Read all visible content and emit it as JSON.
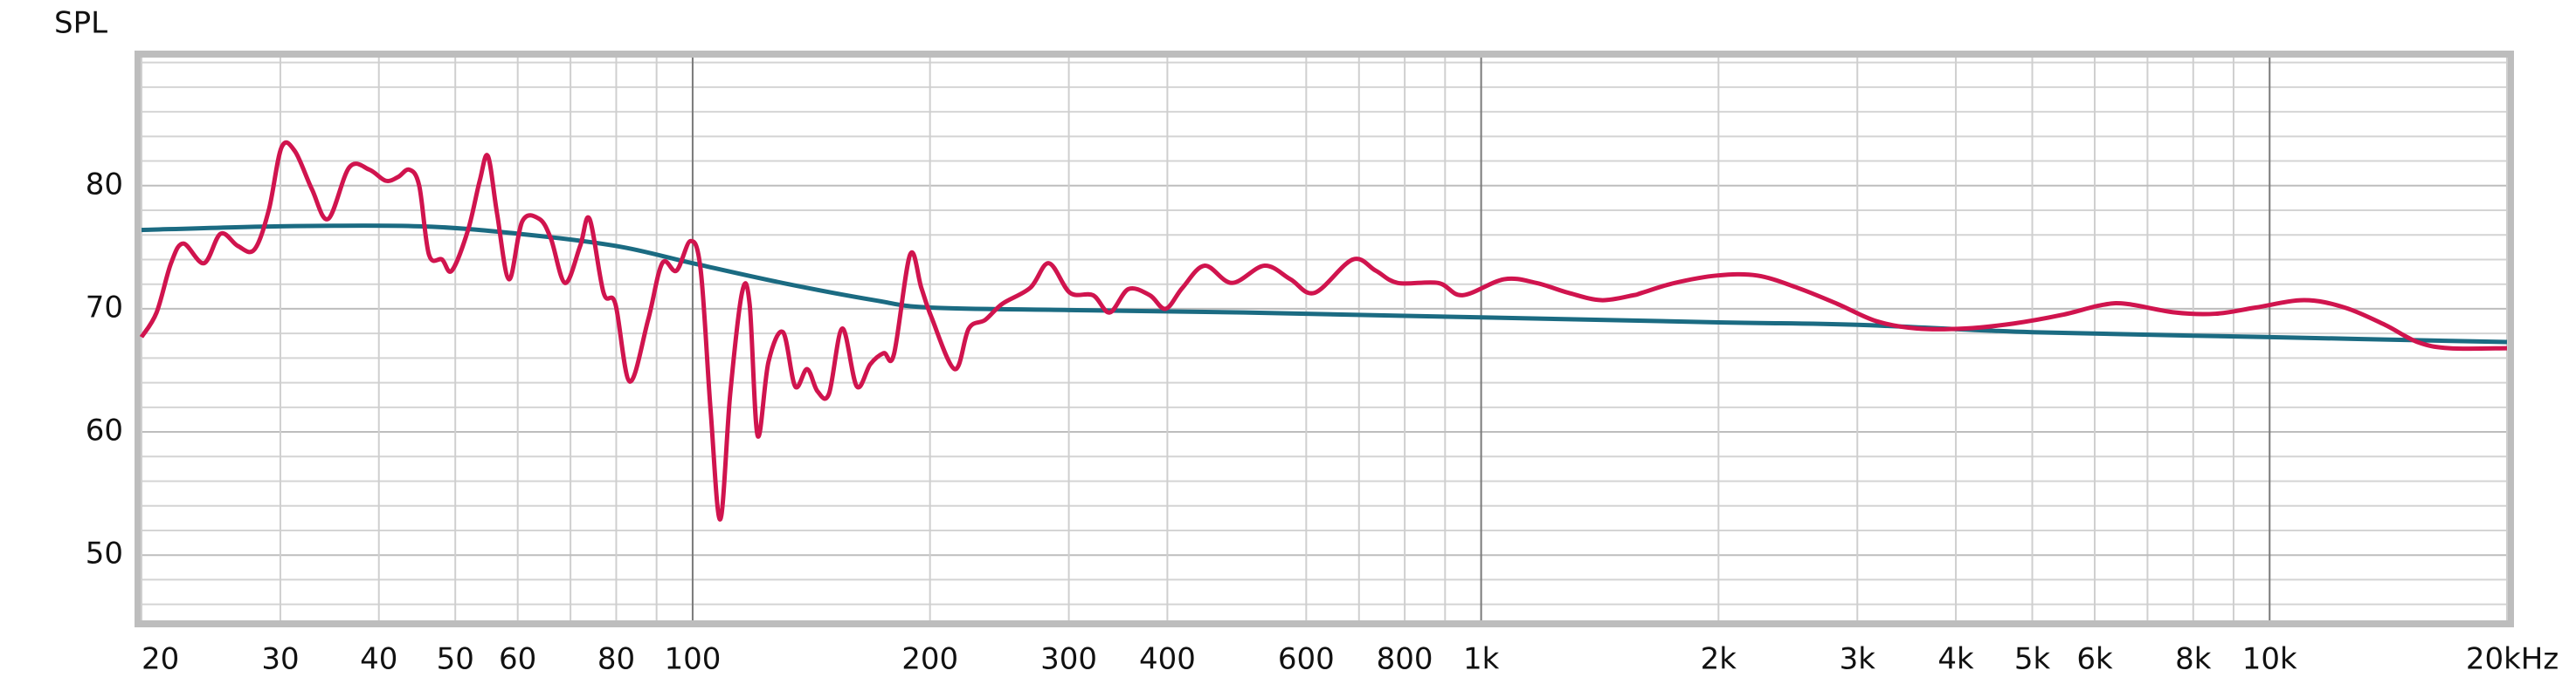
{
  "chart_data": {
    "type": "line",
    "y_label": "SPL",
    "log_x": true,
    "grid": true,
    "xlim": [
      20,
      20000
    ],
    "ylim": [
      44.7,
      90.4
    ],
    "xticks": [
      20,
      30,
      40,
      50,
      60,
      80,
      100,
      200,
      300,
      400,
      600,
      800,
      {
        "value": 1000,
        "label": "1k"
      },
      {
        "value": 2000,
        "label": "2k"
      },
      {
        "value": 3000,
        "label": "3k"
      },
      {
        "value": 4000,
        "label": "4k"
      },
      {
        "value": 5000,
        "label": "5k"
      },
      {
        "value": 6000,
        "label": "6k"
      },
      {
        "value": 8000,
        "label": "8k"
      },
      {
        "value": 10000,
        "label": "10k"
      },
      {
        "value": 20000,
        "label": "20kHz"
      }
    ],
    "x_minor_ticks": [
      70,
      90,
      700,
      900,
      7000,
      9000
    ],
    "yticks": [
      50,
      60,
      70,
      80
    ],
    "y_minor_ticks": [
      46,
      48,
      52,
      54,
      56,
      58,
      62,
      64,
      66,
      68,
      72,
      74,
      76,
      78,
      82,
      84,
      86,
      88,
      90
    ],
    "series": [
      {
        "color": "#d0144e",
        "x": [
          20,
          20.9,
          21.8,
          22.6,
          24.0,
          25.2,
          26.5,
          27.8,
          29.0,
          30.1,
          31.3,
          32.9,
          34.5,
          36.7,
          38.9,
          40.8,
          42.3,
          43.7,
          45,
          46.3,
          48.1,
          49.5,
          51.9,
          53.7,
          55,
          56.5,
          58.5,
          60.8,
          63.9,
          66.1,
          68.9,
          72,
          74,
          77.1,
          79.8,
          83.2,
          87.8,
          91.5,
          95.4,
          99.4,
          102.4,
          105.4,
          108.4,
          111.6,
          115.5,
          118.1,
          120.9,
          124.8,
          130.2,
          134.9,
          139.7,
          144,
          148.9,
          154.8,
          161.5,
          168,
          174.7,
          180,
          188.7,
          195,
          200.9,
          215,
          224,
          235,
          247,
          268,
          283,
          301,
          322,
          338,
          357,
          380,
          398,
          418,
          446,
          483,
          531,
          573,
          615,
          687,
          735,
          784,
          882,
          947,
          1069,
          1175,
          1290,
          1420,
          1560,
          1600,
          1760,
          1990,
          2240,
          2520,
          2830,
          3170,
          3570,
          4110,
          4730,
          5450,
          6120,
          6580,
          7590,
          8540,
          9600,
          11060,
          12450,
          14000,
          15400,
          16900,
          20000
        ],
        "values": [
          67.7,
          69.7,
          73.7,
          75.3,
          73.7,
          76.1,
          75.1,
          74.8,
          78.0,
          83.1,
          82.8,
          79.7,
          77.3,
          81.5,
          81.3,
          80.4,
          80.7,
          81.3,
          80,
          74.4,
          74,
          73.1,
          76.4,
          80.4,
          82.4,
          77.7,
          72.4,
          77.1,
          77.3,
          75.7,
          72.1,
          75.1,
          77.3,
          71.3,
          70.4,
          64.1,
          69.1,
          73.7,
          73.1,
          75.5,
          73.1,
          61.7,
          52.9,
          63.1,
          71.3,
          70.4,
          59.7,
          65.7,
          68.1,
          63.7,
          65.1,
          63.3,
          63.1,
          68.4,
          63.7,
          65.5,
          66.4,
          66.3,
          74.4,
          71.7,
          69.3,
          65.1,
          68.4,
          69.1,
          70.4,
          71.7,
          73.7,
          71.3,
          71.1,
          69.7,
          71.6,
          71.1,
          70,
          71.7,
          73.5,
          72.1,
          73.5,
          72.4,
          71.3,
          74,
          73.1,
          72.1,
          72.1,
          71.1,
          72.4,
          72.1,
          71.3,
          70.7,
          71.1,
          71.3,
          72.1,
          72.7,
          72.7,
          71.7,
          70.4,
          69,
          68.4,
          68.4,
          68.8,
          69.5,
          70.3,
          70.4,
          69.7,
          69.6,
          70.1,
          70.7,
          70.1,
          68.7,
          67.3,
          66.8,
          66.8
        ]
      },
      {
        "color": "#1b6b82",
        "x": [
          20,
          30,
          45,
          60,
          80,
          100,
          130,
          170,
          200,
          300,
          500,
          1000,
          2000,
          3000,
          5000,
          10000,
          20000
        ],
        "values": [
          76.4,
          76.7,
          76.7,
          76.1,
          75.1,
          73.7,
          72.1,
          70.7,
          70.1,
          69.9,
          69.7,
          69.3,
          68.9,
          68.7,
          68.1,
          67.7,
          67.3
        ]
      }
    ]
  }
}
